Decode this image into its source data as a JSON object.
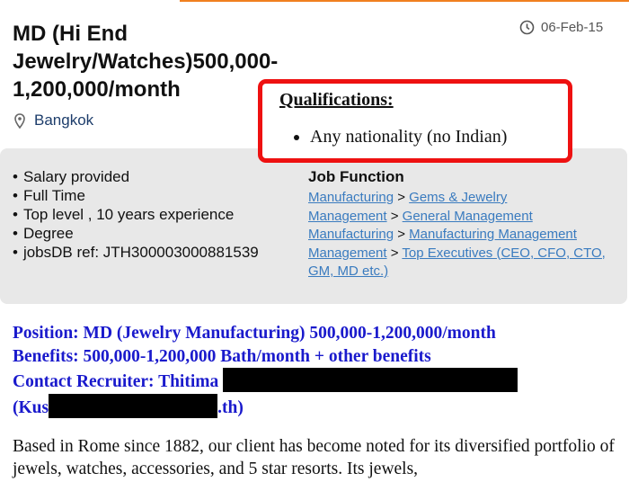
{
  "header": {
    "title": "MD (Hi End Jewelry/Watches)500,000-1,200,000/month",
    "date": "06-Feb-15",
    "location": "Bangkok"
  },
  "callout": {
    "heading": "Qualifications:",
    "items": [
      "Any nationality (no Indian)"
    ]
  },
  "facts": [
    "Salary provided",
    "Full Time",
    "Top level , 10 years experience",
    "Degree",
    "jobsDB ref: JTH300003000881539"
  ],
  "job_function": {
    "heading": "Job Function",
    "separator": ">",
    "items": [
      {
        "category": "Manufacturing",
        "subcategory": "Gems & Jewelry"
      },
      {
        "category": "Management",
        "subcategory": "General Management"
      },
      {
        "category": "Manufacturing",
        "subcategory": "Manufacturing Management"
      },
      {
        "category": "Management",
        "subcategory": "Top Executives (CEO, CFO, CTO, GM, MD etc.)"
      }
    ]
  },
  "details": {
    "position": "Position: MD (Jewelry Manufacturing) 500,000-1,200,000/month",
    "benefits": "Benefits: 500,000-1,200,000 Bath/month + other benefits",
    "contact": "Contact Recruiter: Thitima",
    "email_start": "(Kus",
    "email_end": ".th)"
  },
  "description": "Based in Rome since 1882, our client has become noted for its diversified portfolio of jewels, watches, accessories, and 5 star resorts. Its jewels,"
}
